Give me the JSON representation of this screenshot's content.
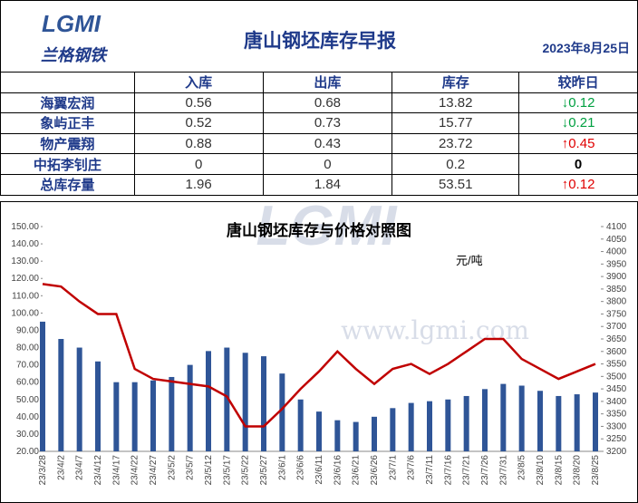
{
  "header": {
    "logo": "LGMI",
    "brand": "兰格钢铁",
    "title": "唐山钢坯库存早报",
    "date": "2023年8月25日"
  },
  "table": {
    "headers": [
      "入库",
      "出库",
      "库存",
      "较昨日"
    ],
    "rows": [
      [
        "海翼宏润",
        0.56,
        0.68,
        13.82,
        "↓0.12"
      ],
      [
        "象屿正丰",
        0.52,
        0.73,
        15.77,
        "↓0.21"
      ],
      [
        "物产震翔",
        0.88,
        0.43,
        23.72,
        "↑0.45"
      ],
      [
        "中拓李钊庄",
        0,
        0,
        0.2,
        "0"
      ],
      [
        "总库存量",
        1.96,
        1.84,
        53.51,
        "↑0.12"
      ]
    ]
  },
  "chart_data": {
    "type": "bar_line",
    "title": "唐山钢坯库存与价格对照图",
    "unit": "元/吨",
    "watermark": "LGMI",
    "watermark_url": "www.lgmi.com",
    "categories": [
      "23/3/28",
      "23/4/2",
      "23/4/7",
      "23/4/12",
      "23/4/17",
      "23/4/22",
      "23/4/27",
      "23/5/2",
      "23/5/7",
      "23/5/12",
      "23/5/17",
      "23/5/22",
      "23/5/27",
      "23/6/1",
      "23/6/6",
      "23/6/11",
      "23/6/16",
      "23/6/21",
      "23/6/26",
      "23/7/1",
      "23/7/6",
      "23/7/11",
      "23/7/16",
      "23/7/21",
      "23/7/26",
      "23/7/31",
      "23/8/5",
      "23/8/10",
      "23/8/15",
      "23/8/20",
      "23/8/25"
    ],
    "series": [
      {
        "type": "bar",
        "color": "#2f5597",
        "values": [
          95,
          85,
          80,
          72,
          60,
          60,
          61,
          63,
          70,
          78,
          80,
          77,
          75,
          65,
          50,
          43,
          38,
          37,
          40,
          45,
          48,
          49,
          50,
          52,
          56,
          59,
          58,
          55,
          52,
          53,
          54
        ]
      },
      {
        "type": "line",
        "color": "#c00000",
        "axis": "y2",
        "values": [
          3870,
          3860,
          3800,
          3750,
          3750,
          3530,
          3490,
          3480,
          3470,
          3460,
          3420,
          3300,
          3300,
          3370,
          3450,
          3520,
          3600,
          3530,
          3470,
          3530,
          3550,
          3510,
          3550,
          3600,
          3650,
          3650,
          3570,
          3530,
          3490,
          3520,
          3550
        ]
      }
    ],
    "ylim": [
      20,
      150
    ],
    "yticks": [
      {
        "value": 20,
        "label": "20.00"
      },
      {
        "value": 30,
        "label": "30.00"
      },
      {
        "value": 40,
        "label": "40.00"
      },
      {
        "value": 50,
        "label": "50.00"
      },
      {
        "value": 60,
        "label": "60.00"
      },
      {
        "value": 70,
        "label": "70.00"
      },
      {
        "value": 80,
        "label": "80.00"
      },
      {
        "value": 90,
        "label": "90.00"
      },
      {
        "value": 100,
        "label": "100.00"
      },
      {
        "value": 110,
        "label": "110.00"
      },
      {
        "value": 120,
        "label": "120.00"
      },
      {
        "value": 130,
        "label": "130.00"
      },
      {
        "value": 140,
        "label": "140.00"
      },
      {
        "value": 150,
        "label": "150.00"
      }
    ],
    "y2lim": [
      3200,
      4100
    ],
    "y2ticks": [
      3200,
      3250,
      3300,
      3350,
      3400,
      3450,
      3500,
      3550,
      3600,
      3650,
      3700,
      3750,
      3800,
      3850,
      3900,
      3950,
      4000,
      4050,
      4100
    ]
  }
}
